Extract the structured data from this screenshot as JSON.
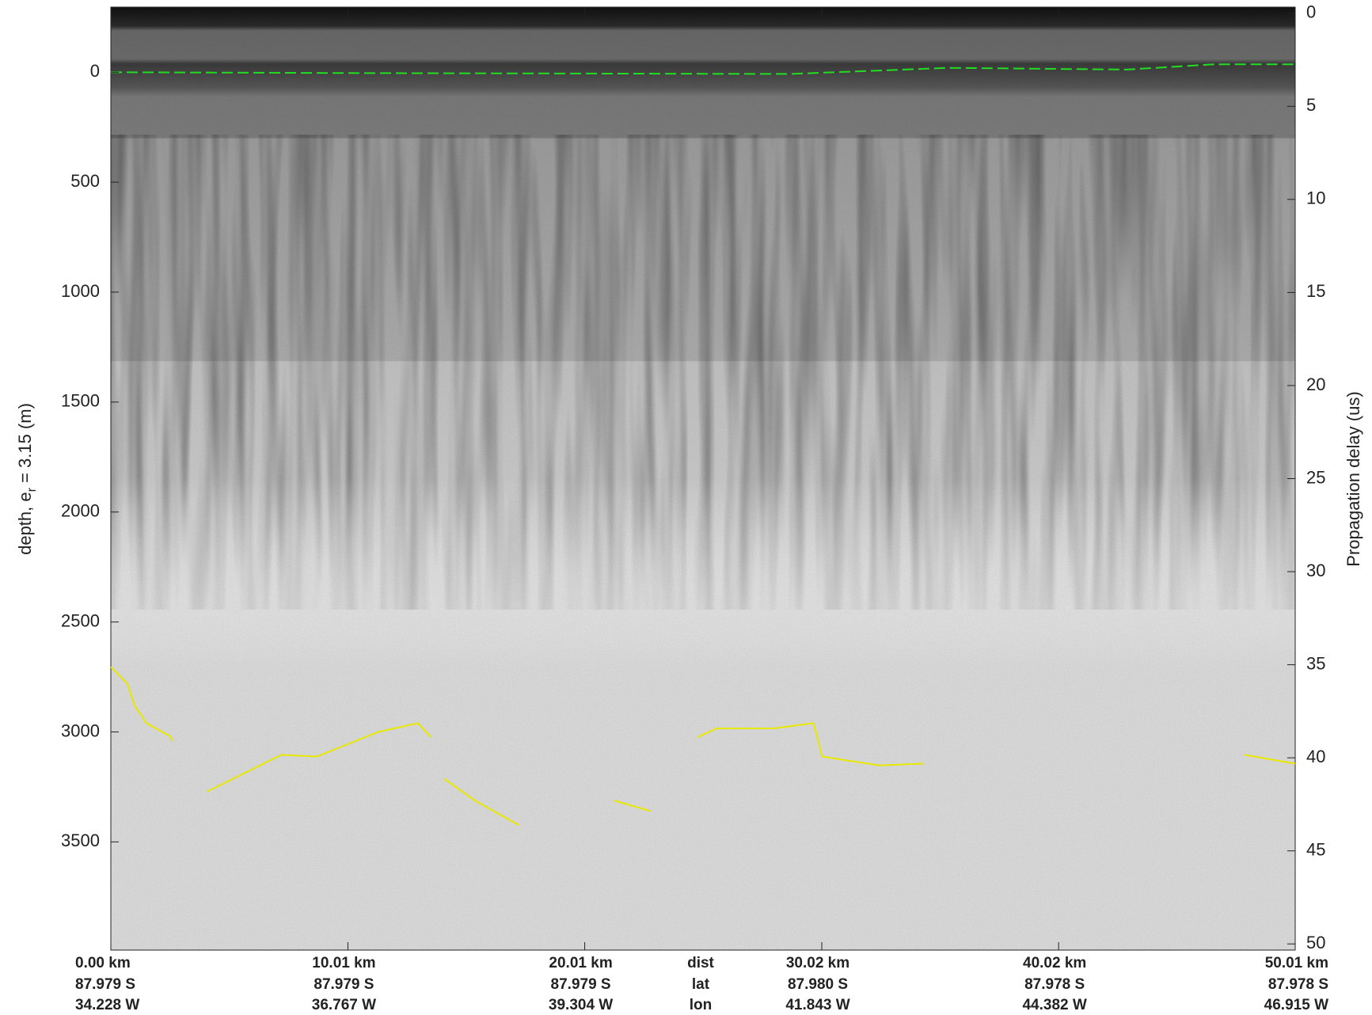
{
  "chart_data": {
    "type": "echogram",
    "ylabel": {
      "text": "depth, e",
      "sub": "r",
      "rest": " = 3.15 (m)"
    },
    "y2label": "Propagation delay (us)",
    "ylim": [
      -296,
      3992
    ],
    "y_inverted": true,
    "yticks": [
      0,
      500,
      1000,
      1500,
      2000,
      2500,
      3000,
      3500
    ],
    "y2lim": [
      -0.33,
      50.33
    ],
    "y2ticks": [
      0,
      5,
      10,
      15,
      20,
      25,
      30,
      35,
      40,
      45,
      50
    ],
    "xlim": [
      0,
      50.01
    ],
    "xticks": [
      {
        "value": 0,
        "label": "0.00 km"
      },
      {
        "value": 10.01,
        "label": "10.01 km"
      },
      {
        "value": 20.01,
        "label": "20.01 km"
      },
      {
        "value": 30.02,
        "label": "30.02 km"
      },
      {
        "value": 40.02,
        "label": "40.02 km"
      },
      {
        "value": 50.01,
        "label": "50.01 km"
      }
    ],
    "lat_labels": [
      "87.979 S",
      "87.979 S",
      "87.979 S",
      "87.980 S",
      "87.978 S",
      "87.978 S"
    ],
    "lon_labels": [
      "34.228 W",
      "36.767 W",
      "39.304 W",
      "41.843 W",
      "44.382 W",
      "46.915 W"
    ],
    "row_labels": [
      "dist",
      "lat",
      "lon"
    ],
    "layers": [
      {
        "color": "#22dd22",
        "dashed": true,
        "x": [
          0,
          10,
          20,
          28.7,
          35.4,
          42.9,
          46.6,
          50.01
        ],
        "values": [
          0,
          4,
          6,
          8,
          -20,
          -12,
          -36,
          -36
        ]
      },
      {
        "color": "#e8e800",
        "dashed": false,
        "x": [
          0,
          0.7,
          1.0,
          1.5,
          2.5,
          2.6,
          null,
          4.05,
          7.2,
          8.69,
          9.62,
          11.29,
          12.96,
          13.52,
          null,
          14.07,
          15.37,
          17.23,
          null,
          21.24,
          22.8,
          null,
          24.77,
          25.58,
          28.0,
          29.67,
          30.04,
          32.45,
          34.31,
          null,
          47.86,
          50.01
        ],
        "values": [
          2704,
          2780,
          2880,
          2960,
          3020,
          3040,
          null,
          3272,
          3104,
          3112,
          3072,
          3000,
          2960,
          3024,
          null,
          3212,
          3312,
          3424,
          null,
          3312,
          3360,
          null,
          3024,
          2984,
          2984,
          2960,
          3112,
          3152,
          3144,
          null,
          3104,
          3144
        ]
      }
    ]
  }
}
